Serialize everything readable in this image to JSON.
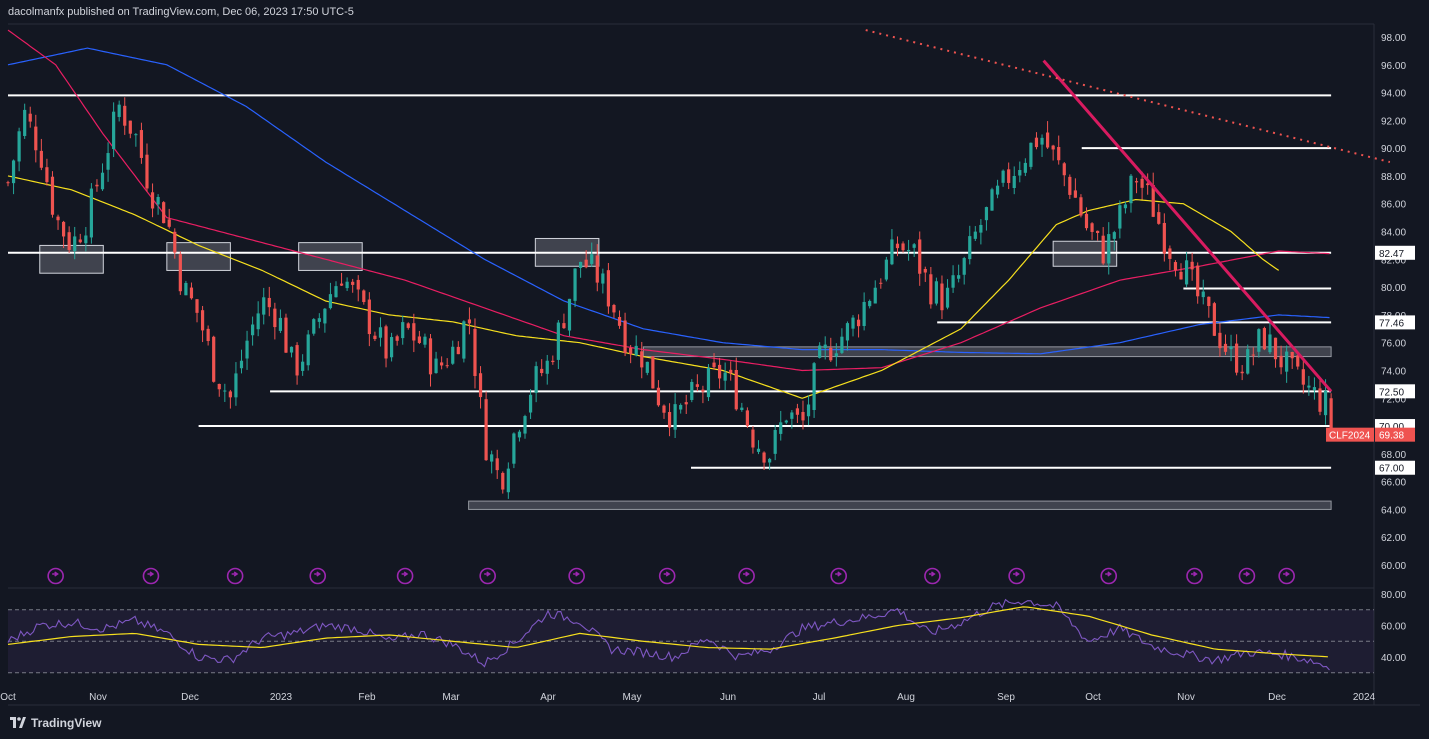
{
  "header": {
    "publisher_line": "dacolmanfx published on TradingView.com, Dec 06, 2023 17:50 UTC-5"
  },
  "footer": {
    "brand": "TradingView"
  },
  "colors": {
    "background": "#131722",
    "up_candle": "#26a69a",
    "down_candle": "#ef5350",
    "sma_blue": "#2962ff",
    "sma_pink": "#e91e63",
    "sma_yellow": "#f7e01e",
    "trendline": "#d81b60",
    "rsi_line": "#7e57c2",
    "rsi_ma": "#f7e01e",
    "events": "#9c27b0"
  },
  "chart_data": [
    {
      "type": "candlestick",
      "symbol": "CLF2024",
      "last_price": "69.38",
      "y_axis": {
        "min": 60,
        "max": 98,
        "ticks": [
          "98.00",
          "96.00",
          "94.00",
          "92.00",
          "90.00",
          "88.00",
          "86.00",
          "84.00",
          "82.00",
          "80.00",
          "78.00",
          "76.00",
          "74.00",
          "72.00",
          "70.00",
          "68.00",
          "66.00",
          "64.00",
          "62.00",
          "60.00"
        ]
      },
      "x_labels": [
        "Oct",
        "Nov",
        "Dec",
        "2023",
        "Feb",
        "Mar",
        "Apr",
        "May",
        "Jun",
        "Jul",
        "Aug",
        "Sep",
        "Oct",
        "Nov",
        "Dec",
        "2024"
      ],
      "price_path": [
        [
          0,
          87.5
        ],
        [
          10,
          92.5
        ],
        [
          20,
          90
        ],
        [
          30,
          85
        ],
        [
          40,
          83
        ],
        [
          50,
          85
        ],
        [
          60,
          89
        ],
        [
          70,
          93
        ],
        [
          80,
          91
        ],
        [
          90,
          87
        ],
        [
          100,
          85
        ],
        [
          110,
          80
        ],
        [
          120,
          78
        ],
        [
          130,
          74
        ],
        [
          140,
          72
        ],
        [
          150,
          76
        ],
        [
          160,
          79
        ],
        [
          170,
          78
        ],
        [
          180,
          74
        ],
        [
          190,
          76
        ],
        [
          200,
          79
        ],
        [
          210,
          81
        ],
        [
          220,
          79
        ],
        [
          230,
          77
        ],
        [
          240,
          75
        ],
        [
          250,
          77
        ],
        [
          260,
          76
        ],
        [
          270,
          74
        ],
        [
          280,
          75.5
        ],
        [
          290,
          78
        ],
        [
          300,
          69
        ],
        [
          310,
          66
        ],
        [
          320,
          70
        ],
        [
          330,
          73
        ],
        [
          340,
          74.5
        ],
        [
          350,
          78
        ],
        [
          360,
          82
        ],
        [
          370,
          81
        ],
        [
          380,
          79
        ],
        [
          390,
          76
        ],
        [
          400,
          75
        ],
        [
          410,
          72
        ],
        [
          420,
          70.5
        ],
        [
          430,
          72
        ],
        [
          440,
          73
        ],
        [
          450,
          74
        ],
        [
          460,
          72
        ],
        [
          470,
          69
        ],
        [
          480,
          68
        ],
        [
          490,
          71
        ],
        [
          500,
          70
        ],
        [
          510,
          74.5
        ],
        [
          520,
          76
        ],
        [
          530,
          77
        ],
        [
          540,
          79
        ],
        [
          550,
          81
        ],
        [
          560,
          83
        ],
        [
          570,
          82.5
        ],
        [
          580,
          80
        ],
        [
          590,
          79
        ],
        [
          600,
          81
        ],
        [
          610,
          84
        ],
        [
          620,
          86
        ],
        [
          630,
          88
        ],
        [
          640,
          89.5
        ],
        [
          650,
          91
        ],
        [
          660,
          89
        ],
        [
          670,
          87
        ],
        [
          680,
          84
        ],
        [
          690,
          82.5
        ],
        [
          700,
          85
        ],
        [
          710,
          88
        ],
        [
          720,
          86
        ],
        [
          730,
          83
        ],
        [
          740,
          81.5
        ],
        [
          750,
          79
        ],
        [
          760,
          77
        ],
        [
          770,
          75
        ],
        [
          780,
          74.5
        ],
        [
          790,
          76.5
        ],
        [
          800,
          75
        ],
        [
          810,
          73.5
        ],
        [
          820,
          72.5
        ],
        [
          830,
          71.5
        ],
        [
          833,
          69.4
        ]
      ],
      "moving_averages": [
        {
          "name": "SMA blue",
          "path": [
            [
              0,
              96
            ],
            [
              50,
              97.2
            ],
            [
              100,
              96
            ],
            [
              150,
              93
            ],
            [
              200,
              89
            ],
            [
              250,
              85.5
            ],
            [
              300,
              82
            ],
            [
              350,
              79
            ],
            [
              400,
              77
            ],
            [
              450,
              76
            ],
            [
              500,
              75.5
            ],
            [
              550,
              75.5
            ],
            [
              600,
              75.3
            ],
            [
              650,
              75.2
            ],
            [
              700,
              76
            ],
            [
              750,
              77.3
            ],
            [
              800,
              78
            ],
            [
              833,
              77.8
            ]
          ]
        },
        {
          "name": "SMA pink",
          "path": [
            [
              0,
              98.5
            ],
            [
              30,
              96
            ],
            [
              60,
              91
            ],
            [
              100,
              85
            ],
            [
              150,
              83.5
            ],
            [
              200,
              82
            ],
            [
              250,
              80.5
            ],
            [
              300,
              78.5
            ],
            [
              350,
              76.5
            ],
            [
              400,
              75.5
            ],
            [
              450,
              74.8
            ],
            [
              500,
              74
            ],
            [
              550,
              74.2
            ],
            [
              600,
              76
            ],
            [
              650,
              78.5
            ],
            [
              700,
              80.5
            ],
            [
              750,
              81.5
            ],
            [
              800,
              82.6
            ],
            [
              833,
              82.4
            ]
          ]
        },
        {
          "name": "SMA yellow",
          "path": [
            [
              0,
              88
            ],
            [
              40,
              87
            ],
            [
              80,
              85.2
            ],
            [
              120,
              83
            ],
            [
              160,
              81.2
            ],
            [
              200,
              79
            ],
            [
              240,
              78
            ],
            [
              280,
              77.5
            ],
            [
              320,
              76.5
            ],
            [
              360,
              76
            ],
            [
              400,
              75
            ],
            [
              450,
              74
            ],
            [
              500,
              72
            ],
            [
              550,
              74
            ],
            [
              600,
              77
            ],
            [
              630,
              80.5
            ],
            [
              660,
              84.5
            ],
            [
              680,
              85.5
            ],
            [
              710,
              86.3
            ],
            [
              740,
              86
            ],
            [
              770,
              84
            ],
            [
              790,
              82
            ],
            [
              800,
              81.2
            ]
          ]
        }
      ],
      "horizontal_levels": [
        {
          "value": 93.8,
          "from_x": 0,
          "to_x": 833
        },
        {
          "value": 90.0,
          "from_x": 676,
          "to_x": 833
        },
        {
          "value": 82.47,
          "from_x": 0,
          "to_x": 833,
          "label": "82.47"
        },
        {
          "value": 79.9,
          "from_x": 740,
          "to_x": 833
        },
        {
          "value": 77.46,
          "from_x": 585,
          "to_x": 833,
          "label": "77.46"
        },
        {
          "value": 72.5,
          "from_x": 165,
          "to_x": 833,
          "label": "72.50"
        },
        {
          "value": 70.0,
          "from_x": 120,
          "to_x": 833,
          "label": "70.00"
        },
        {
          "value": 67.0,
          "from_x": 430,
          "to_x": 833,
          "label": "67.00"
        }
      ],
      "zones": [
        {
          "from_value": 75.0,
          "to_value": 75.7,
          "from_x": 400,
          "to_x": 833
        },
        {
          "from_value": 64.0,
          "to_value": 64.6,
          "from_x": 290,
          "to_x": 833
        }
      ],
      "boxes": [
        {
          "from_x": 20,
          "to_x": 60,
          "low": 81.0,
          "high": 83.0
        },
        {
          "from_x": 100,
          "to_x": 140,
          "low": 81.2,
          "high": 83.2
        },
        {
          "from_x": 183,
          "to_x": 223,
          "low": 81.2,
          "high": 83.2
        },
        {
          "from_x": 332,
          "to_x": 372,
          "low": 81.5,
          "high": 83.5
        },
        {
          "from_x": 658,
          "to_x": 698,
          "low": 81.5,
          "high": 83.3
        }
      ],
      "trendlines": [
        {
          "style": "solid",
          "from": [
            652,
            96.3
          ],
          "to": [
            833,
            72.5
          ]
        },
        {
          "style": "dotted",
          "from": [
            540,
            98.5
          ],
          "to": [
            870,
            89
          ]
        }
      ],
      "event_markers_x": [
        30,
        90,
        143,
        195,
        250,
        302,
        358,
        415,
        465,
        523,
        582,
        635,
        693,
        747,
        780,
        805
      ]
    },
    {
      "type": "line",
      "name": "RSI",
      "y_axis": {
        "ticks": [
          "80.00",
          "60.00",
          "40.00"
        ]
      },
      "levels": [
        70,
        50,
        30
      ],
      "rsi_path": [
        [
          0,
          50
        ],
        [
          20,
          60
        ],
        [
          40,
          62
        ],
        [
          60,
          58
        ],
        [
          80,
          63
        ],
        [
          100,
          55
        ],
        [
          120,
          40
        ],
        [
          140,
          38
        ],
        [
          160,
          52
        ],
        [
          180,
          55
        ],
        [
          200,
          60
        ],
        [
          220,
          58
        ],
        [
          240,
          50
        ],
        [
          260,
          55
        ],
        [
          280,
          48
        ],
        [
          300,
          36
        ],
        [
          320,
          50
        ],
        [
          340,
          68
        ],
        [
          360,
          63
        ],
        [
          380,
          45
        ],
        [
          400,
          43
        ],
        [
          420,
          40
        ],
        [
          440,
          52
        ],
        [
          460,
          40
        ],
        [
          480,
          45
        ],
        [
          500,
          58
        ],
        [
          520,
          62
        ],
        [
          540,
          65
        ],
        [
          560,
          70
        ],
        [
          580,
          55
        ],
        [
          600,
          62
        ],
        [
          620,
          72
        ],
        [
          640,
          76
        ],
        [
          660,
          72
        ],
        [
          680,
          50
        ],
        [
          700,
          58
        ],
        [
          720,
          47
        ],
        [
          740,
          42
        ],
        [
          760,
          38
        ],
        [
          780,
          43
        ],
        [
          800,
          42
        ],
        [
          820,
          38
        ],
        [
          833,
          33
        ]
      ],
      "ma_path": [
        [
          0,
          48
        ],
        [
          40,
          53
        ],
        [
          80,
          55
        ],
        [
          120,
          48
        ],
        [
          160,
          46
        ],
        [
          200,
          52
        ],
        [
          240,
          54
        ],
        [
          280,
          50
        ],
        [
          320,
          46
        ],
        [
          360,
          55
        ],
        [
          400,
          50
        ],
        [
          440,
          46
        ],
        [
          480,
          45
        ],
        [
          520,
          52
        ],
        [
          560,
          60
        ],
        [
          600,
          65
        ],
        [
          640,
          72
        ],
        [
          680,
          66
        ],
        [
          720,
          54
        ],
        [
          760,
          45
        ],
        [
          800,
          42
        ],
        [
          833,
          40
        ]
      ]
    }
  ]
}
